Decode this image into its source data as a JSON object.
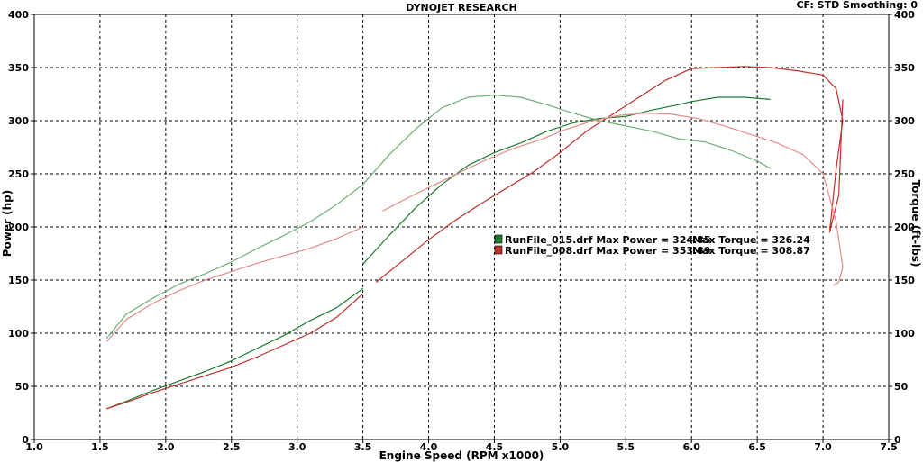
{
  "header": {
    "title": "DYNOJET RESEARCH",
    "info": "CF: STD  Smoothing: 0"
  },
  "chart_data": {
    "type": "line",
    "title": "DYNOJET RESEARCH",
    "xlabel": "Engine Speed (RPM x1000)",
    "ylabel": "Power (hp)",
    "y2label": "Torque (ft-lbs)",
    "xlim": [
      1.0,
      7.5
    ],
    "ylim": [
      0,
      400
    ],
    "y2lim": [
      0,
      400
    ],
    "x_ticks": [
      "1.0",
      "1.5",
      "2.0",
      "2.5",
      "3.0",
      "3.5",
      "4.0",
      "4.5",
      "5.0",
      "5.5",
      "6.0",
      "6.5",
      "7.0",
      "7.5"
    ],
    "y_ticks": [
      "0",
      "50",
      "100",
      "150",
      "200",
      "250",
      "300",
      "350",
      "400"
    ],
    "y2_ticks": [
      "0",
      "50",
      "100",
      "150",
      "200",
      "250",
      "300",
      "350",
      "400"
    ],
    "grid": true,
    "legend_position": "center-right",
    "legend": [
      {
        "label": "RunFile_015.drf Max Power = 324.85",
        "extra": "Max Torque = 326.24",
        "color": "#1d7a2e"
      },
      {
        "label": "RunFile_008.drf Max Power = 353.89",
        "extra": "Max Torque = 308.87",
        "color": "#c0302b"
      }
    ],
    "series": [
      {
        "color": "#1d7a2e",
        "style": "power",
        "axis": "y",
        "x": [
          1.55,
          1.7,
          1.9,
          2.1,
          2.3,
          2.5,
          2.7,
          2.9,
          3.1,
          3.3,
          3.5
        ],
        "y": [
          29,
          36,
          46,
          55,
          64,
          74,
          86,
          98,
          112,
          124,
          142
        ]
      },
      {
        "color": "#1d7a2e",
        "style": "power",
        "axis": "y",
        "x": [
          3.5,
          3.7,
          3.9,
          4.1,
          4.3,
          4.5,
          4.7,
          4.9,
          5.1,
          5.3,
          5.5,
          5.7,
          5.9,
          6.0,
          6.2,
          6.4,
          6.6
        ],
        "y": [
          165,
          192,
          218,
          240,
          258,
          270,
          279,
          290,
          298,
          302,
          304,
          310,
          315,
          318,
          322,
          322,
          320
        ]
      },
      {
        "color": "#c0302b",
        "style": "power",
        "axis": "y",
        "x": [
          1.55,
          1.7,
          1.9,
          2.1,
          2.3,
          2.5,
          2.7,
          2.9,
          3.1,
          3.3,
          3.5
        ],
        "y": [
          29,
          35,
          44,
          52,
          60,
          68,
          78,
          89,
          100,
          115,
          137
        ]
      },
      {
        "color": "#c0302b",
        "style": "power",
        "axis": "y",
        "x": [
          3.6,
          3.8,
          4.0,
          4.2,
          4.4,
          4.6,
          4.8,
          5.0,
          5.2,
          5.4,
          5.6,
          5.8,
          6.0,
          6.2,
          6.4,
          6.6,
          6.8,
          7.0,
          7.1,
          7.15,
          7.1,
          7.05,
          7.12,
          7.15
        ],
        "y": [
          148,
          168,
          188,
          206,
          222,
          237,
          252,
          270,
          290,
          306,
          322,
          338,
          349,
          350,
          351,
          350,
          347,
          343,
          330,
          300,
          255,
          195,
          230,
          320
        ]
      },
      {
        "color": "#6fae78",
        "style": "torque",
        "axis": "y2",
        "x": [
          1.55,
          1.7,
          1.9,
          2.1,
          2.3,
          2.5,
          2.7,
          2.9,
          3.1,
          3.3,
          3.5,
          3.7,
          3.9,
          4.1,
          4.3,
          4.5,
          4.7,
          4.9,
          5.1,
          5.3,
          5.5,
          5.7,
          5.9,
          6.1,
          6.3,
          6.5,
          6.6
        ],
        "y": [
          95,
          118,
          133,
          146,
          156,
          167,
          180,
          192,
          205,
          221,
          240,
          268,
          292,
          312,
          322,
          324,
          322,
          315,
          307,
          300,
          295,
          290,
          283,
          280,
          272,
          262,
          255
        ]
      },
      {
        "color": "#e08d86",
        "style": "torque",
        "axis": "y2",
        "x": [
          1.55,
          1.7,
          1.9,
          2.1,
          2.3,
          2.5,
          2.7,
          2.9,
          3.1,
          3.3,
          3.5
        ],
        "y": [
          92,
          113,
          128,
          140,
          150,
          158,
          166,
          173,
          180,
          189,
          200
        ]
      },
      {
        "color": "#e08d86",
        "style": "torque",
        "axis": "y2",
        "x": [
          3.65,
          3.85,
          4.05,
          4.25,
          4.45,
          4.65,
          4.85,
          5.05,
          5.25,
          5.45,
          5.65,
          5.85,
          6.05,
          6.25,
          6.45,
          6.65,
          6.85,
          7.0,
          7.1,
          7.15,
          7.12,
          7.08
        ],
        "y": [
          215,
          228,
          240,
          252,
          264,
          274,
          282,
          292,
          300,
          305,
          307,
          306,
          302,
          295,
          287,
          279,
          268,
          250,
          205,
          162,
          148,
          145
        ]
      }
    ]
  }
}
